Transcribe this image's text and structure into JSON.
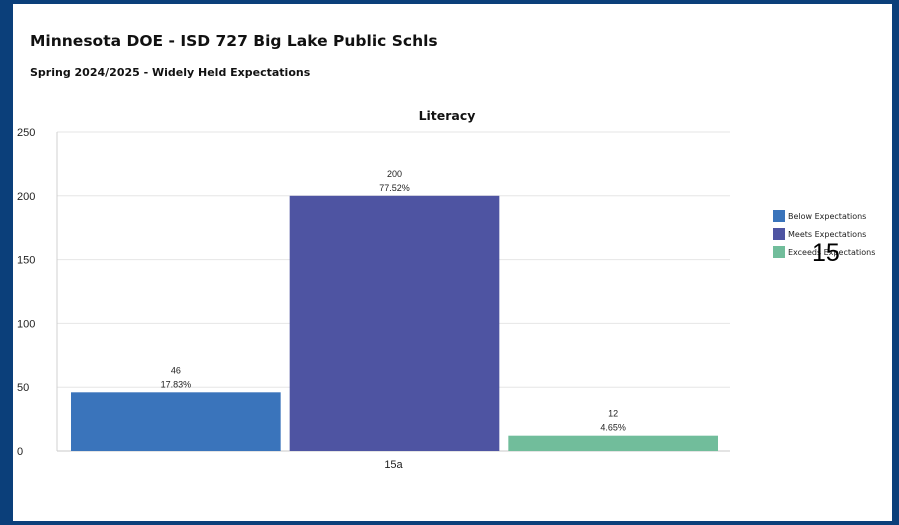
{
  "header": {
    "title": "Minnesota DOE - ISD 727 Big Lake Public Schls",
    "subtitle": "Spring 2024/2025 - Widely Held Expectations"
  },
  "overlay_text": "15",
  "colors": {
    "below": "#3a74bb",
    "meets": "#4e54a2",
    "exceeds": "#71bd9b",
    "frame": "#0b3f7a"
  },
  "chart_data": {
    "type": "bar",
    "title": "Literacy",
    "categories": [
      "15a"
    ],
    "ylim": [
      0,
      250
    ],
    "yticks": [
      0,
      50,
      100,
      150,
      200,
      250
    ],
    "grid": true,
    "legend_position": "right",
    "series": [
      {
        "name": "Below Expectations",
        "values": [
          46
        ],
        "labels": [
          "17.83%"
        ],
        "color_key": "below"
      },
      {
        "name": "Meets Expectations",
        "values": [
          200
        ],
        "labels": [
          "77.52%"
        ],
        "color_key": "meets"
      },
      {
        "name": "Exceeds Expectations",
        "values": [
          12
        ],
        "labels": [
          "4.65%"
        ],
        "color_key": "exceeds"
      }
    ]
  }
}
